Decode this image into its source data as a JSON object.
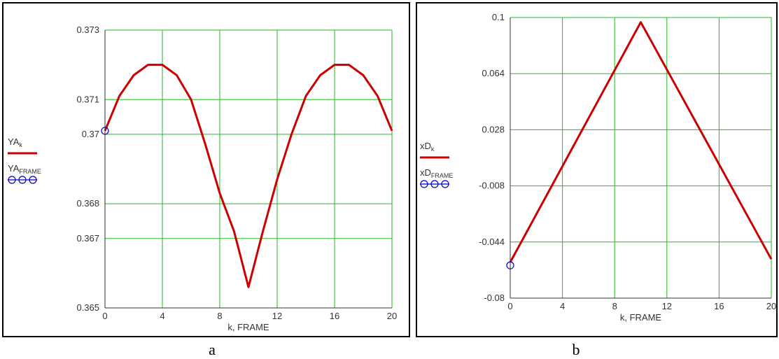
{
  "chart_data": [
    {
      "type": "line",
      "caption": "a",
      "xlabel": "k, FRAME",
      "ylim": [
        0.365,
        0.373
      ],
      "xlim": [
        0,
        20
      ],
      "xticks": [
        "0",
        "4",
        "8",
        "12",
        "16",
        "20"
      ],
      "yticks": [
        "0.365",
        "0.367",
        "0.368",
        "0.37",
        "0.371",
        "0.373"
      ],
      "grid": true,
      "legend_position": "left",
      "legend": [
        {
          "base": "YA",
          "sub": "k",
          "color": "#cc0000",
          "style": "line"
        },
        {
          "base": "YA",
          "sub": "FRAME",
          "color": "#0000cc",
          "style": "circles"
        }
      ],
      "series": [
        {
          "color": "#cc0000",
          "x": [
            0,
            1,
            2,
            3,
            4,
            5,
            6,
            7,
            8,
            9,
            10,
            11,
            12,
            13,
            14,
            15,
            16,
            17,
            18,
            19,
            20
          ],
          "y": [
            0.3701,
            0.3711,
            0.3717,
            0.372,
            0.372,
            0.3717,
            0.371,
            0.3697,
            0.3683,
            0.3672,
            0.3656,
            0.3672,
            0.3687,
            0.37,
            0.3711,
            0.3717,
            0.372,
            0.372,
            0.3717,
            0.3711,
            0.3701
          ]
        },
        {
          "color": "#0000cc",
          "marker": "circle",
          "x": [
            0
          ],
          "y": [
            0.3701
          ]
        }
      ]
    },
    {
      "type": "line",
      "caption": "b",
      "xlabel": "k, FRAME",
      "ylim": [
        -0.08,
        0.1
      ],
      "xlim": [
        0,
        20
      ],
      "xticks": [
        "0",
        "4",
        "8",
        "12",
        "16",
        "20"
      ],
      "yticks": [
        "-0.08",
        "-0.044",
        "-0.008",
        "0.028",
        "0.064",
        "0.1"
      ],
      "grid": true,
      "legend_position": "left",
      "legend": [
        {
          "base": "xD",
          "sub": "k",
          "color": "#cc0000",
          "style": "line"
        },
        {
          "base": "xD",
          "sub": "FRAME",
          "color": "#0000cc",
          "style": "circles"
        }
      ],
      "series": [
        {
          "color": "#cc0000",
          "x": [
            0,
            10,
            20
          ],
          "y": [
            -0.057,
            0.097,
            -0.055
          ]
        },
        {
          "color": "#0000cc",
          "marker": "circle",
          "x": [
            0
          ],
          "y": [
            -0.059
          ]
        }
      ]
    }
  ],
  "captions": {
    "a": "a",
    "b": "b"
  }
}
